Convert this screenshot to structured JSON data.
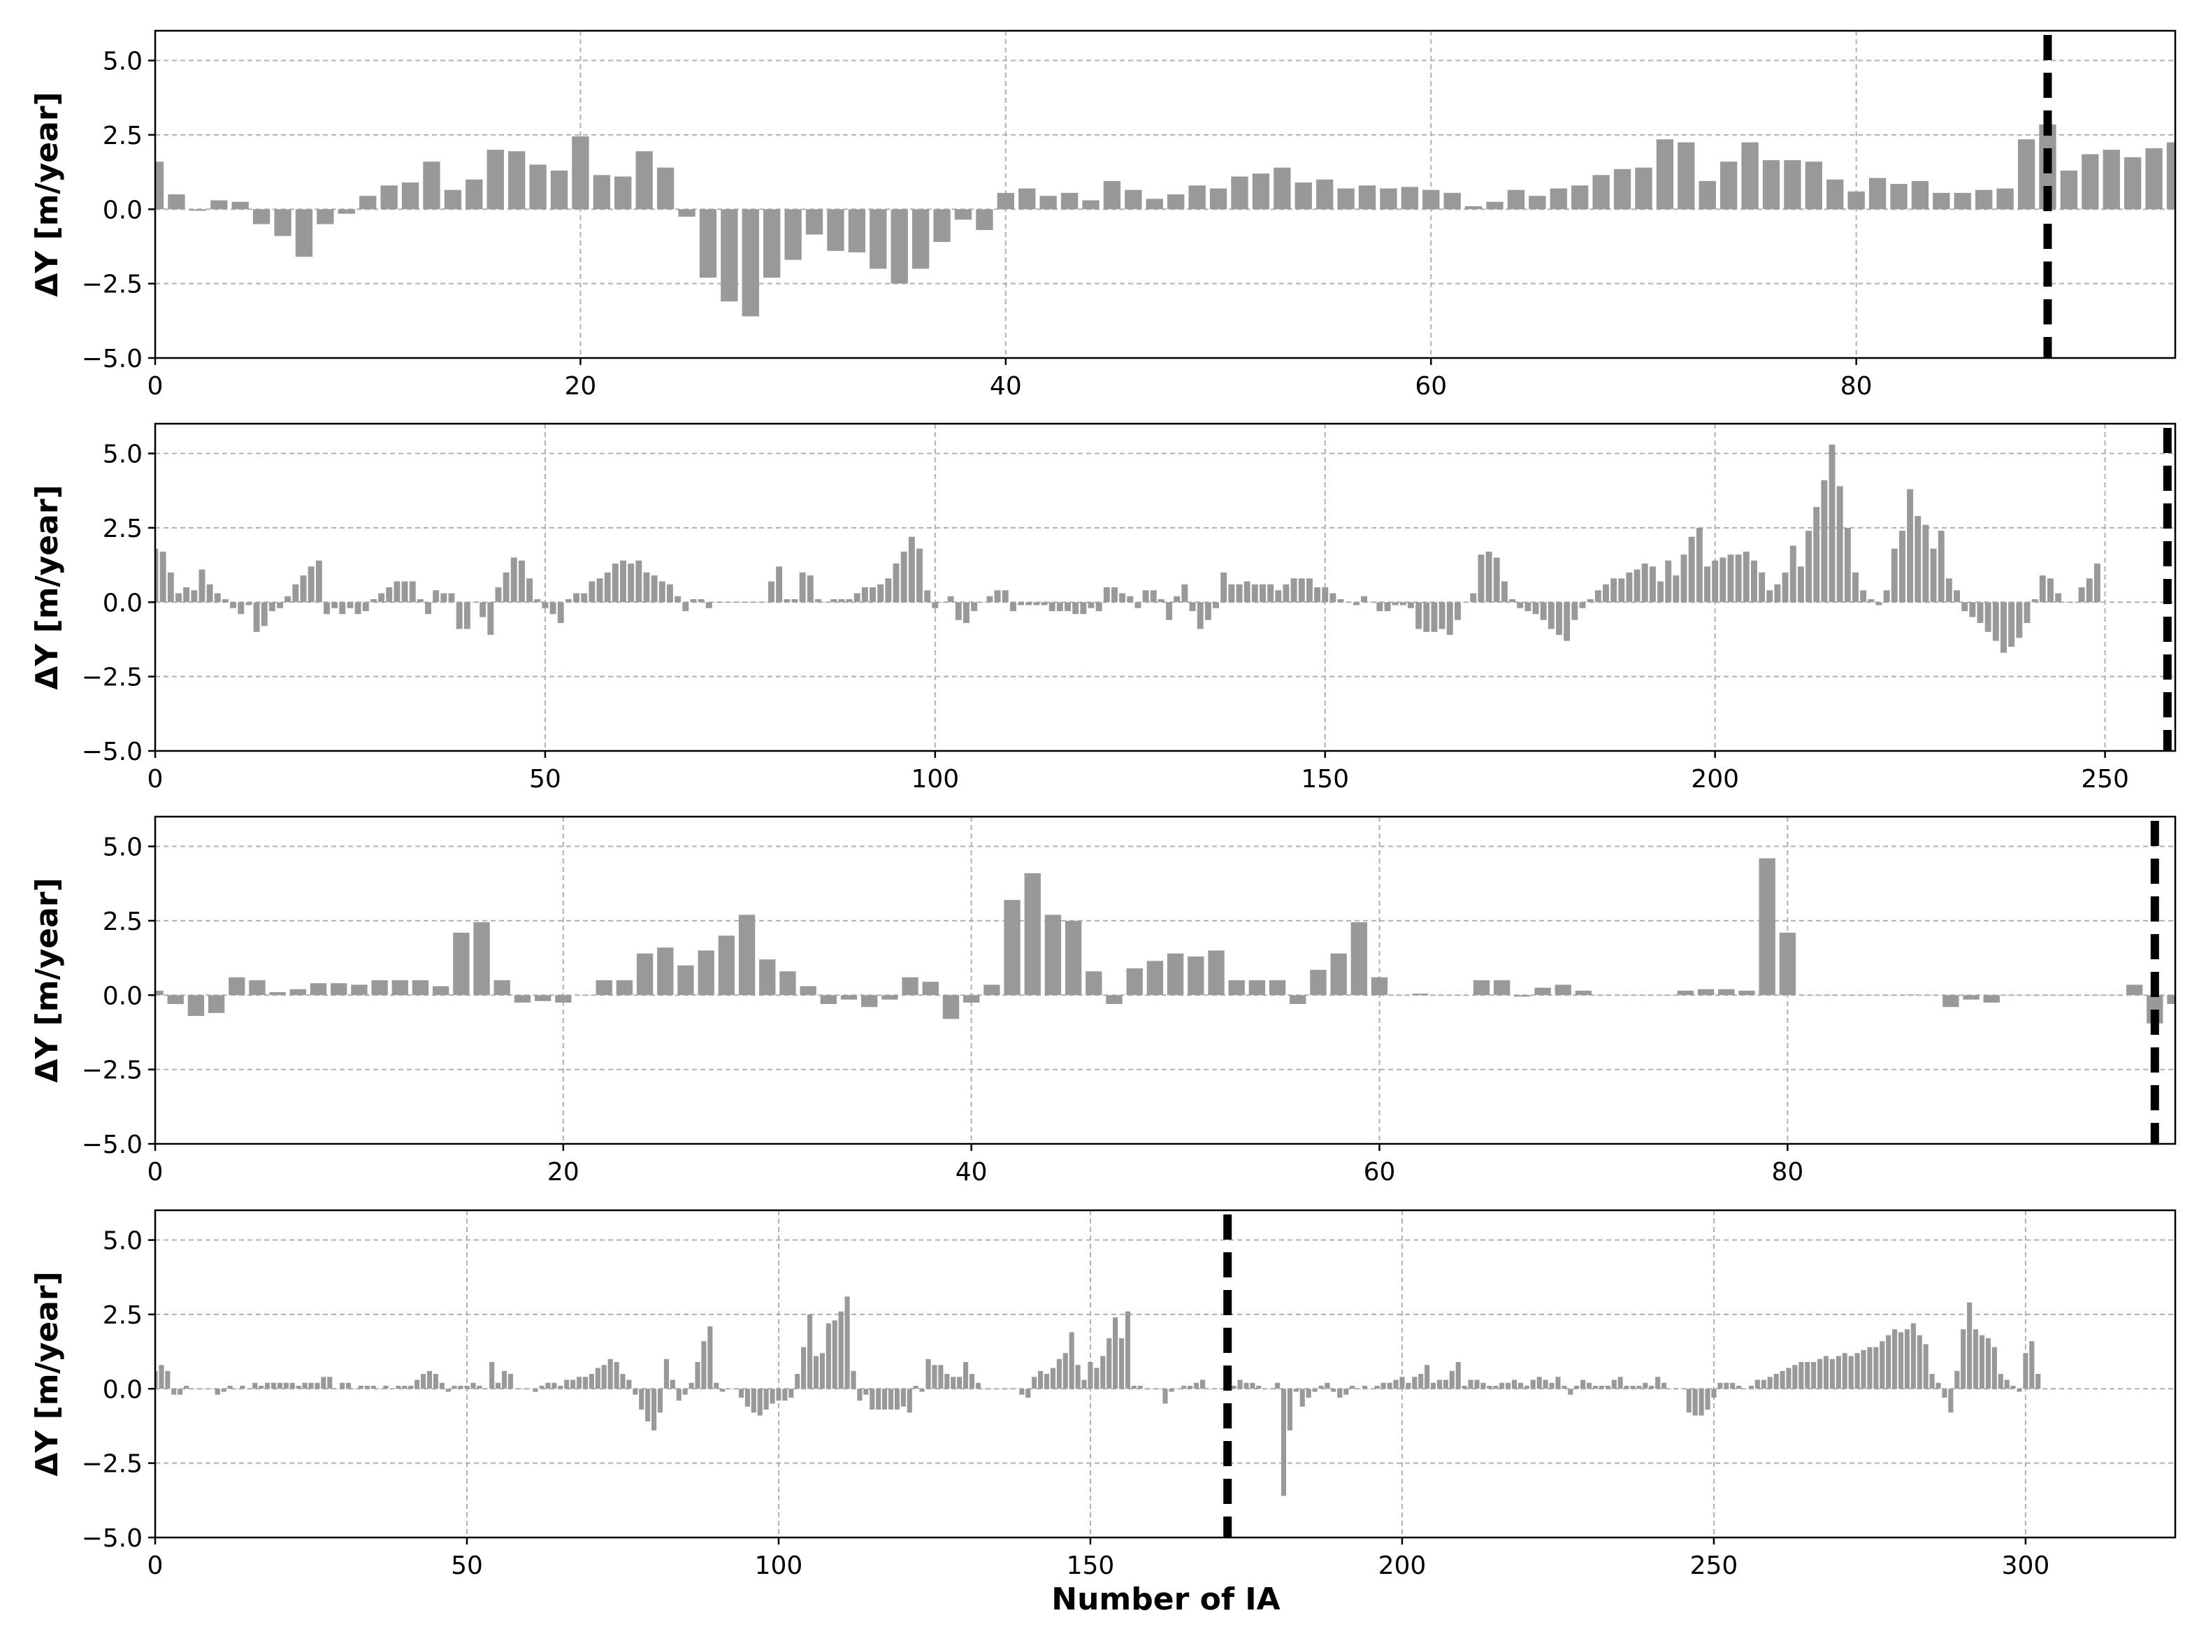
{
  "figure": {
    "xlabel": "Number of IA"
  },
  "colors": {
    "bar": "#999999",
    "grid": "#b0b0b0",
    "marker_line": "#000000"
  },
  "chart_data": [
    {
      "type": "bar",
      "ylabel": "ΔY [m/year]",
      "xlim": [
        0,
        95
      ],
      "ylim": [
        -5.0,
        6.0
      ],
      "xticks": [
        0,
        20,
        40,
        60,
        80
      ],
      "yticks": [
        -5.0,
        -2.5,
        0.0,
        2.5,
        5.0
      ],
      "grid": true,
      "vertical_line_x": 89,
      "x_start": 0,
      "values": [
        1.6,
        0.5,
        -0.05,
        0.3,
        0.25,
        -0.5,
        -0.9,
        -1.6,
        -0.5,
        -0.15,
        0.45,
        0.8,
        0.9,
        1.6,
        0.65,
        1.0,
        2.0,
        1.95,
        1.5,
        1.3,
        2.45,
        1.15,
        1.1,
        1.95,
        1.4,
        -0.25,
        -2.3,
        -3.1,
        -3.6,
        -2.3,
        -1.7,
        -0.85,
        -1.4,
        -1.45,
        -2.0,
        -2.5,
        -2.0,
        -1.1,
        -0.35,
        -0.7,
        0.55,
        0.7,
        0.45,
        0.55,
        0.3,
        0.95,
        0.65,
        0.35,
        0.5,
        0.8,
        0.7,
        1.1,
        1.2,
        1.4,
        0.9,
        1.0,
        0.7,
        0.8,
        0.7,
        0.75,
        0.65,
        0.55,
        0.1,
        0.25,
        0.65,
        0.45,
        0.7,
        0.8,
        1.15,
        1.35,
        1.4,
        2.35,
        2.25,
        0.95,
        1.6,
        2.25,
        1.65,
        1.65,
        1.6,
        1.0,
        0.6,
        1.05,
        0.85,
        0.95,
        0.55,
        0.55,
        0.65,
        0.7,
        2.35,
        2.85,
        1.3,
        1.85,
        2.0,
        1.75,
        2.05,
        2.25
      ]
    },
    {
      "type": "bar",
      "ylabel": "ΔY [m/year]",
      "xlim": [
        0,
        259
      ],
      "ylim": [
        -5.0,
        6.0
      ],
      "xticks": [
        0,
        50,
        100,
        150,
        200,
        250
      ],
      "yticks": [
        -5.0,
        -2.5,
        0.0,
        2.5,
        5.0
      ],
      "grid": true,
      "vertical_line_x": 258,
      "x_start": 0,
      "values": [
        1.8,
        1.7,
        1.0,
        0.3,
        0.5,
        0.4,
        1.1,
        0.6,
        0.3,
        0.1,
        -0.2,
        -0.4,
        -0.1,
        -1.0,
        -0.8,
        -0.3,
        -0.2,
        0.2,
        0.6,
        0.9,
        1.2,
        1.4,
        -0.4,
        -0.2,
        -0.4,
        -0.2,
        -0.4,
        -0.3,
        0.1,
        0.3,
        0.5,
        0.7,
        0.7,
        0.7,
        0.1,
        -0.4,
        0.4,
        0.3,
        0.3,
        -0.9,
        -0.9,
        0.0,
        -0.5,
        -1.1,
        0.5,
        1.0,
        1.5,
        1.4,
        0.8,
        0.1,
        -0.2,
        -0.4,
        -0.7,
        0.1,
        0.3,
        0.3,
        0.7,
        0.8,
        1.0,
        1.3,
        1.4,
        1.3,
        1.4,
        1.0,
        0.9,
        0.7,
        0.6,
        0.2,
        -0.3,
        0.1,
        0.1,
        -0.2,
        0.0,
        0.0,
        0.0,
        0.0,
        0.0,
        0.0,
        0.0,
        0.7,
        1.2,
        0.1,
        0.1,
        1.0,
        0.9,
        0.1,
        0.0,
        0.1,
        0.1,
        0.1,
        0.3,
        0.5,
        0.5,
        0.6,
        0.8,
        1.3,
        1.7,
        2.2,
        1.8,
        0.4,
        -0.2,
        0.0,
        0.2,
        -0.6,
        -0.7,
        -0.3,
        0.0,
        0.2,
        0.4,
        0.4,
        -0.3,
        -0.1,
        -0.1,
        -0.1,
        -0.1,
        -0.3,
        -0.3,
        -0.3,
        -0.4,
        -0.4,
        -0.2,
        -0.3,
        0.5,
        0.5,
        0.3,
        0.2,
        -0.2,
        0.4,
        0.4,
        0.1,
        -0.6,
        0.2,
        0.6,
        -0.3,
        -0.9,
        -0.6,
        -0.2,
        1.0,
        0.6,
        0.6,
        0.7,
        0.6,
        0.6,
        0.6,
        0.4,
        0.6,
        0.8,
        0.8,
        0.8,
        0.5,
        0.5,
        0.3,
        0.1,
        0.0,
        -0.1,
        0.2,
        0.0,
        -0.3,
        -0.3,
        -0.1,
        -0.1,
        -0.2,
        -0.9,
        -1.0,
        -1.0,
        -0.9,
        -1.1,
        -0.6,
        0.0,
        0.3,
        1.6,
        1.7,
        1.5,
        0.7,
        0.1,
        -0.2,
        -0.3,
        -0.4,
        -0.6,
        -0.9,
        -1.1,
        -1.3,
        -0.6,
        -0.2,
        0.1,
        0.4,
        0.6,
        0.8,
        0.8,
        1.0,
        1.1,
        1.3,
        1.2,
        0.7,
        1.4,
        0.9,
        1.6,
        2.2,
        2.5,
        1.2,
        1.4,
        1.5,
        1.6,
        1.6,
        1.7,
        1.4,
        1.0,
        0.4,
        0.6,
        1.0,
        1.9,
        1.2,
        2.4,
        3.2,
        4.1,
        5.3,
        3.9,
        2.5,
        1.0,
        0.4,
        0.1,
        -0.1,
        0.4,
        1.8,
        2.4,
        3.8,
        2.9,
        2.6,
        1.8,
        2.4,
        0.8,
        0.4,
        -0.3,
        -0.5,
        -0.7,
        -1.0,
        -1.3,
        -1.7,
        -1.5,
        -1.2,
        -0.7,
        0.1,
        0.9,
        0.8,
        0.3,
        0.0,
        0.0,
        0.5,
        0.8,
        1.3
      ]
    },
    {
      "type": "bar",
      "ylabel": "ΔY [m/year]",
      "xlim": [
        0,
        99
      ],
      "ylim": [
        -5.0,
        6.0
      ],
      "xticks": [
        0,
        20,
        40,
        60,
        80
      ],
      "yticks": [
        -5.0,
        -2.5,
        0.0,
        2.5,
        5.0
      ],
      "grid": true,
      "vertical_line_x": 98,
      "x_start": 0,
      "values": [
        0.15,
        -0.3,
        -0.7,
        -0.6,
        0.6,
        0.5,
        0.1,
        0.2,
        0.4,
        0.4,
        0.35,
        0.5,
        0.5,
        0.5,
        0.3,
        2.1,
        2.45,
        0.5,
        -0.25,
        -0.2,
        -0.25,
        0.0,
        0.5,
        0.5,
        1.4,
        1.6,
        1.0,
        1.5,
        2.0,
        2.7,
        1.2,
        0.8,
        0.3,
        -0.3,
        -0.15,
        -0.4,
        -0.15,
        0.6,
        0.45,
        -0.8,
        -0.25,
        0.35,
        3.2,
        4.1,
        2.7,
        2.5,
        0.8,
        -0.3,
        0.9,
        1.15,
        1.4,
        1.3,
        1.5,
        0.5,
        0.5,
        0.5,
        -0.3,
        0.85,
        1.4,
        2.45,
        0.6,
        0.0,
        0.05,
        0.0,
        0.0,
        0.5,
        0.5,
        -0.05,
        0.25,
        0.35,
        0.15,
        0.0,
        0.0,
        0.0,
        0.0,
        0.15,
        0.2,
        0.2,
        0.15,
        4.6,
        2.1,
        0.0,
        0.0,
        0.0,
        0.0,
        0.0,
        0.02,
        0.0,
        -0.4,
        -0.15,
        -0.25,
        0.0,
        0.0,
        0.0,
        0.0,
        0.0,
        0.0,
        0.35,
        -0.95,
        -0.3
      ]
    },
    {
      "type": "bar",
      "ylabel": "ΔY [m/year]",
      "xlim": [
        0,
        324
      ],
      "ylim": [
        -5.0,
        6.0
      ],
      "xticks": [
        0,
        50,
        100,
        150,
        200,
        250,
        300
      ],
      "yticks": [
        -5.0,
        -2.5,
        0.0,
        2.5,
        5.0
      ],
      "grid": true,
      "vertical_line_x": 172,
      "x_start": 0,
      "values": [
        0.6,
        0.8,
        0.6,
        -0.2,
        -0.2,
        0.1,
        0.0,
        0.0,
        0.0,
        0.0,
        -0.2,
        -0.1,
        0.1,
        0.0,
        0.1,
        0.0,
        0.2,
        0.1,
        0.2,
        0.2,
        0.2,
        0.2,
        0.2,
        0.1,
        0.2,
        0.2,
        0.2,
        0.4,
        0.4,
        0.0,
        0.2,
        0.2,
        0.0,
        0.1,
        0.1,
        0.1,
        0.0,
        0.1,
        0.0,
        0.1,
        0.1,
        0.1,
        0.3,
        0.5,
        0.6,
        0.5,
        0.2,
        -0.1,
        0.1,
        0.1,
        0.1,
        0.2,
        0.1,
        0.0,
        0.9,
        0.2,
        0.6,
        0.5,
        0.0,
        0.0,
        0.0,
        -0.1,
        0.1,
        0.2,
        0.2,
        0.1,
        0.3,
        0.3,
        0.4,
        0.4,
        0.5,
        0.7,
        0.8,
        1.0,
        0.9,
        0.5,
        0.3,
        -0.2,
        -0.7,
        -1.1,
        -1.4,
        -0.8,
        1.0,
        0.3,
        -0.4,
        -0.2,
        0.2,
        0.9,
        1.6,
        2.1,
        0.2,
        -0.1,
        0.0,
        0.0,
        -0.3,
        -0.6,
        -0.8,
        -0.9,
        -0.7,
        -0.5,
        -0.4,
        -0.4,
        -0.3,
        0.5,
        1.4,
        2.5,
        1.1,
        1.2,
        2.2,
        2.3,
        2.6,
        3.1,
        0.6,
        -0.4,
        -0.2,
        -0.7,
        -0.7,
        -0.7,
        -0.7,
        -0.7,
        -0.6,
        -0.8,
        0.1,
        -0.1,
        1.0,
        0.8,
        0.8,
        0.5,
        0.4,
        0.4,
        0.9,
        0.5,
        0.2,
        0.0,
        0.0,
        0.0,
        0.0,
        0.0,
        0.0,
        -0.2,
        -0.3,
        0.4,
        0.6,
        0.5,
        0.7,
        1.0,
        1.2,
        1.9,
        0.8,
        0.3,
        0.9,
        0.7,
        1.1,
        1.7,
        2.4,
        1.7,
        2.6,
        0.1,
        0.1,
        0.0,
        0.0,
        0.0,
        -0.5,
        -0.1,
        0.0,
        0.1,
        0.1,
        0.2,
        0.3,
        0.0,
        0.0,
        0.0,
        0.2,
        0.1,
        0.3,
        0.2,
        0.2,
        0.1,
        0.0,
        0.0,
        0.2,
        -3.6,
        -1.4,
        -0.1,
        -0.6,
        -0.3,
        -0.1,
        0.1,
        0.2,
        -0.1,
        -0.3,
        -0.2,
        0.1,
        0.0,
        0.1,
        0.0,
        0.1,
        0.2,
        0.2,
        0.3,
        0.4,
        0.2,
        0.4,
        0.5,
        0.8,
        0.2,
        0.3,
        0.3,
        0.6,
        0.9,
        0.1,
        0.3,
        0.3,
        0.2,
        0.1,
        0.1,
        0.2,
        0.2,
        0.3,
        0.2,
        0.1,
        0.3,
        0.4,
        0.3,
        0.2,
        0.4,
        0.1,
        -0.2,
        0.1,
        0.3,
        0.2,
        0.1,
        0.1,
        0.1,
        0.3,
        0.4,
        0.1,
        0.1,
        0.1,
        0.2,
        0.1,
        0.4,
        0.2,
        0.0,
        0.0,
        0.0,
        -0.8,
        -0.9,
        -0.9,
        -0.7,
        -0.3,
        0.2,
        0.2,
        0.2,
        0.1,
        0.0,
        0.1,
        0.3,
        0.3,
        0.4,
        0.5,
        0.6,
        0.7,
        0.8,
        0.9,
        0.9,
        0.9,
        1.0,
        1.1,
        1.0,
        1.1,
        1.2,
        1.1,
        1.2,
        1.3,
        1.4,
        1.4,
        1.6,
        1.8,
        2.0,
        1.9,
        2.0,
        2.2,
        1.8,
        1.5,
        0.5,
        0.2,
        -0.3,
        -0.8,
        0.6,
        2.0,
        2.9,
        2.0,
        1.8,
        1.7,
        1.4,
        0.5,
        0.3,
        0.1,
        -0.1,
        1.2,
        1.6,
        0.5
      ]
    }
  ]
}
